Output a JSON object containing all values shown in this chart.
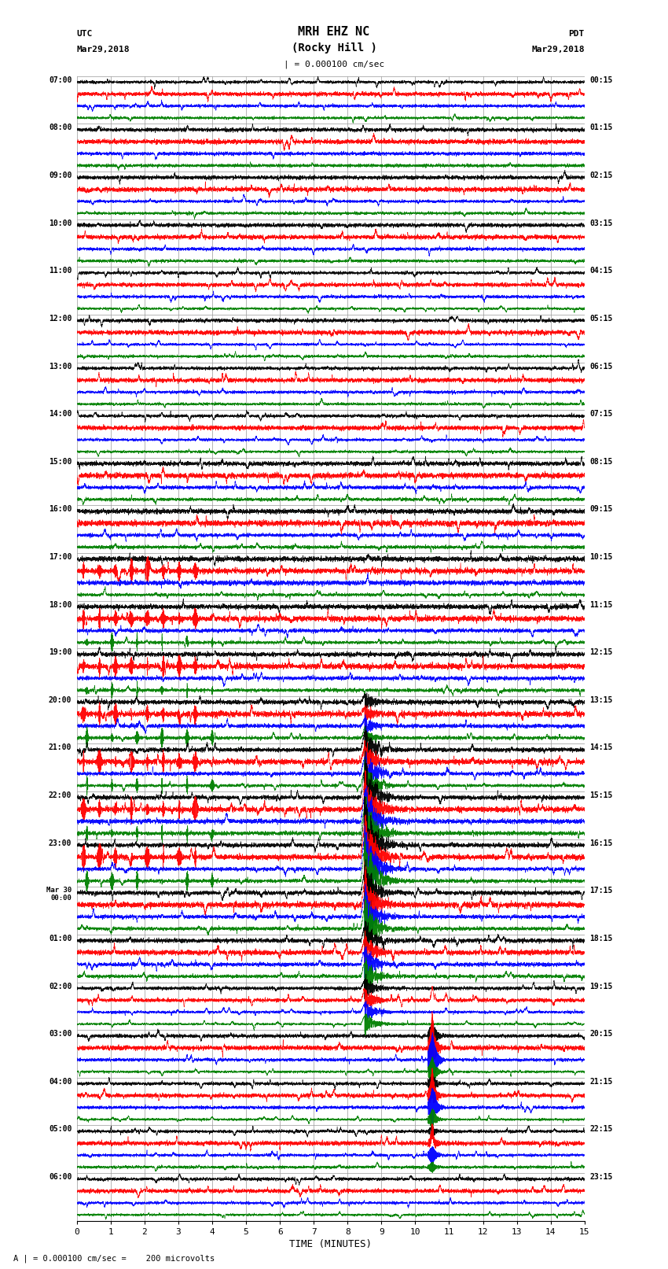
{
  "title_line1": "MRH EHZ NC",
  "title_line2": "(Rocky Hill )",
  "scale_label": "| = 0.000100 cm/sec",
  "bottom_label": "A | = 0.000100 cm/sec =    200 microvolts",
  "xlabel": "TIME (MINUTES)",
  "left_header1": "UTC",
  "left_header2": "Mar29,2018",
  "right_header1": "PDT",
  "right_header2": "Mar29,2018",
  "utc_times": [
    "07:00",
    "08:00",
    "09:00",
    "10:00",
    "11:00",
    "12:00",
    "13:00",
    "14:00",
    "15:00",
    "16:00",
    "17:00",
    "18:00",
    "19:00",
    "20:00",
    "21:00",
    "22:00",
    "23:00",
    "Mar 30\n00:00",
    "01:00",
    "02:00",
    "03:00",
    "04:00",
    "05:00",
    "06:00"
  ],
  "pdt_times": [
    "00:15",
    "01:15",
    "02:15",
    "03:15",
    "04:15",
    "05:15",
    "06:15",
    "07:15",
    "08:15",
    "09:15",
    "10:15",
    "11:15",
    "12:15",
    "13:15",
    "14:15",
    "15:15",
    "16:15",
    "17:15",
    "18:15",
    "19:15",
    "20:15",
    "21:15",
    "22:15",
    "23:15"
  ],
  "num_rows": 24,
  "x_min": 0,
  "x_max": 15,
  "colors_order": [
    "black",
    "red",
    "blue",
    "green"
  ],
  "bg_color": "#ffffff",
  "fig_width": 8.5,
  "fig_height": 16.13
}
